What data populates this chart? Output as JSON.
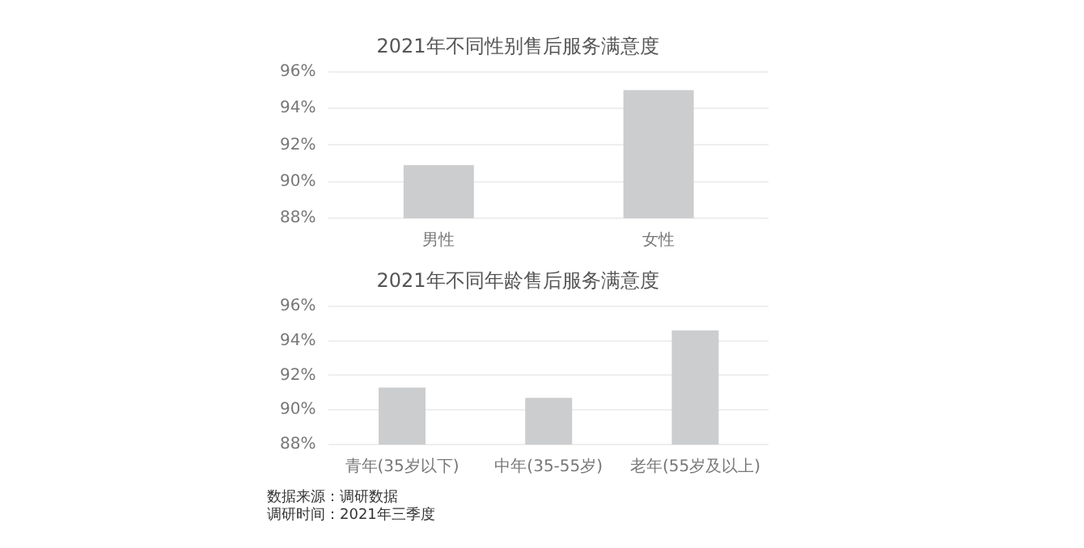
{
  "chart_data": [
    {
      "type": "bar",
      "title": "2021年不同性别售后服务满意度",
      "categories": [
        "男性",
        "女性"
      ],
      "values": [
        90.9,
        95.0
      ],
      "color": "#cccdcf",
      "ylim": [
        88,
        96
      ],
      "yticks": [
        {
          "value": 88,
          "label": "88%"
        },
        {
          "value": 90,
          "label": "90%"
        },
        {
          "value": 92,
          "label": "92%"
        },
        {
          "value": 94,
          "label": "94%"
        },
        {
          "value": 96,
          "label": "96%"
        }
      ],
      "grid": "y"
    },
    {
      "type": "bar",
      "title": "2021年不同年龄售后服务满意度",
      "categories": [
        "青年(35岁以下)",
        "中年(35-55岁)",
        "老年(55岁及以上)"
      ],
      "values": [
        91.3,
        90.7,
        94.6
      ],
      "color": "#cccdcf",
      "ylim": [
        88,
        96
      ],
      "yticks": [
        {
          "value": 88,
          "label": "88%"
        },
        {
          "value": 90,
          "label": "90%"
        },
        {
          "value": 92,
          "label": "92%"
        },
        {
          "value": 94,
          "label": "94%"
        },
        {
          "value": 96,
          "label": "96%"
        }
      ],
      "grid": "y",
      "annotations": [
        "数据来源：调研数据",
        "调研时间：2021年三季度"
      ]
    }
  ]
}
